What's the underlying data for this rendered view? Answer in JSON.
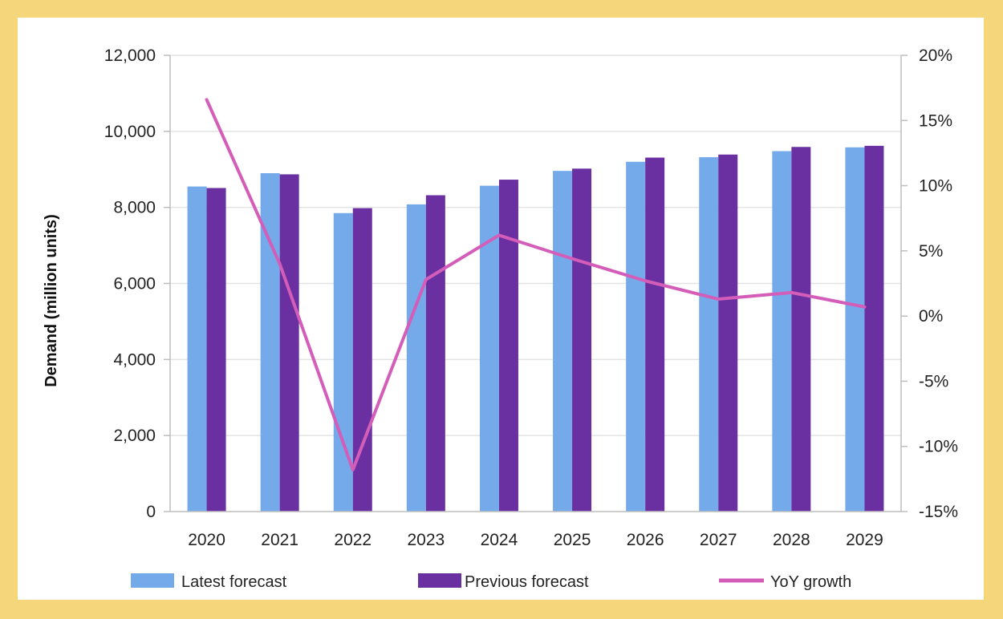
{
  "chart_data": {
    "type": "bar",
    "title": "",
    "categories": [
      "2020",
      "2021",
      "2022",
      "2023",
      "2024",
      "2025",
      "2026",
      "2027",
      "2028",
      "2029"
    ],
    "series": [
      {
        "name": "Latest forecast",
        "type": "bar",
        "axis": "left",
        "values": [
          8550,
          8900,
          7850,
          8080,
          8570,
          8960,
          9200,
          9320,
          9480,
          9580
        ]
      },
      {
        "name": "Previous forecast",
        "type": "bar",
        "axis": "left",
        "values": [
          8510,
          8870,
          7980,
          8320,
          8730,
          9020,
          9310,
          9390,
          9590,
          9620
        ]
      },
      {
        "name": "YoY growth",
        "type": "line",
        "axis": "right",
        "unit": "%",
        "values": [
          16.6,
          4.0,
          -11.8,
          2.8,
          6.2,
          4.4,
          2.7,
          1.3,
          1.8,
          0.7
        ]
      }
    ],
    "ylabel": "Demand (million units)",
    "ylim": [
      0,
      12000
    ],
    "y_ticks": [
      "0",
      "2,000",
      "4,000",
      "6,000",
      "8,000",
      "10,000",
      "12,000"
    ],
    "y2lim": [
      -15,
      20
    ],
    "y2_ticks": [
      "-15%",
      "-10%",
      "-5%",
      "0%",
      "5%",
      "10%",
      "15%",
      "20%"
    ],
    "grid": true,
    "legend_position": "bottom",
    "colors": {
      "latest": "#75aaea",
      "previous": "#6a2fa0",
      "growth": "#d35db8",
      "grid": "#e3e3e3",
      "axis": "#bdbdbd"
    }
  }
}
